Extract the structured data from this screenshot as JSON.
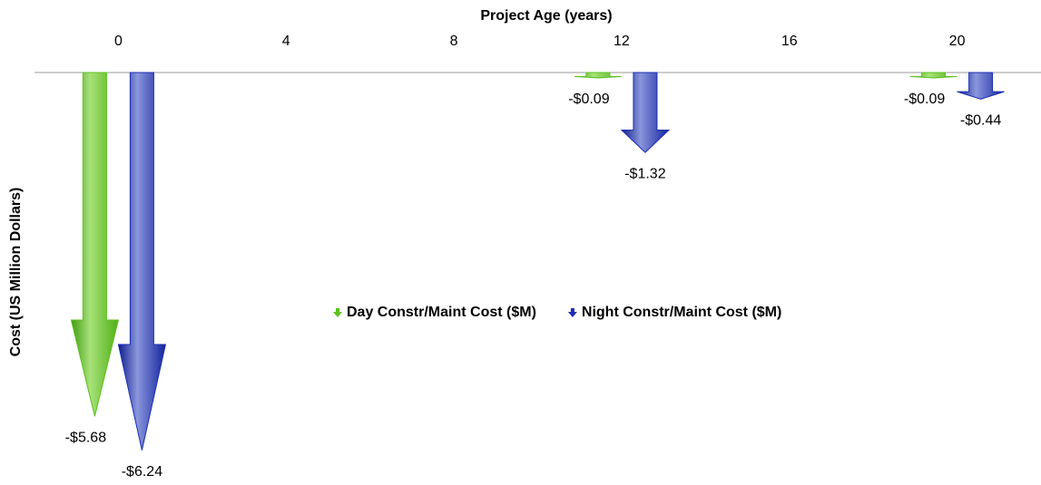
{
  "chart_data": {
    "type": "arrow-bar",
    "x_label": "Project Age (years)",
    "y_label": "Cost (US Million Dollars)",
    "x": [
      0,
      12,
      20
    ],
    "xlim": [
      -2,
      22
    ],
    "xticks": [
      0,
      4,
      8,
      12,
      16,
      20
    ],
    "ylim": [
      -6.5,
      0
    ],
    "series": [
      {
        "name": "Day Constr/Maint Cost ($M)",
        "color": "#5cc21e",
        "values": [
          -5.68,
          -0.09,
          -0.09
        ],
        "value_labels": [
          "-$5.68",
          "-$0.09",
          "-$0.09"
        ]
      },
      {
        "name": "Night Constr/Maint Cost ($M)",
        "color": "#1b2fb3",
        "values": [
          -6.24,
          -1.32,
          -0.44
        ],
        "value_labels": [
          "-$6.24",
          "-$1.32",
          "-$0.44"
        ]
      }
    ],
    "legend": "center"
  }
}
